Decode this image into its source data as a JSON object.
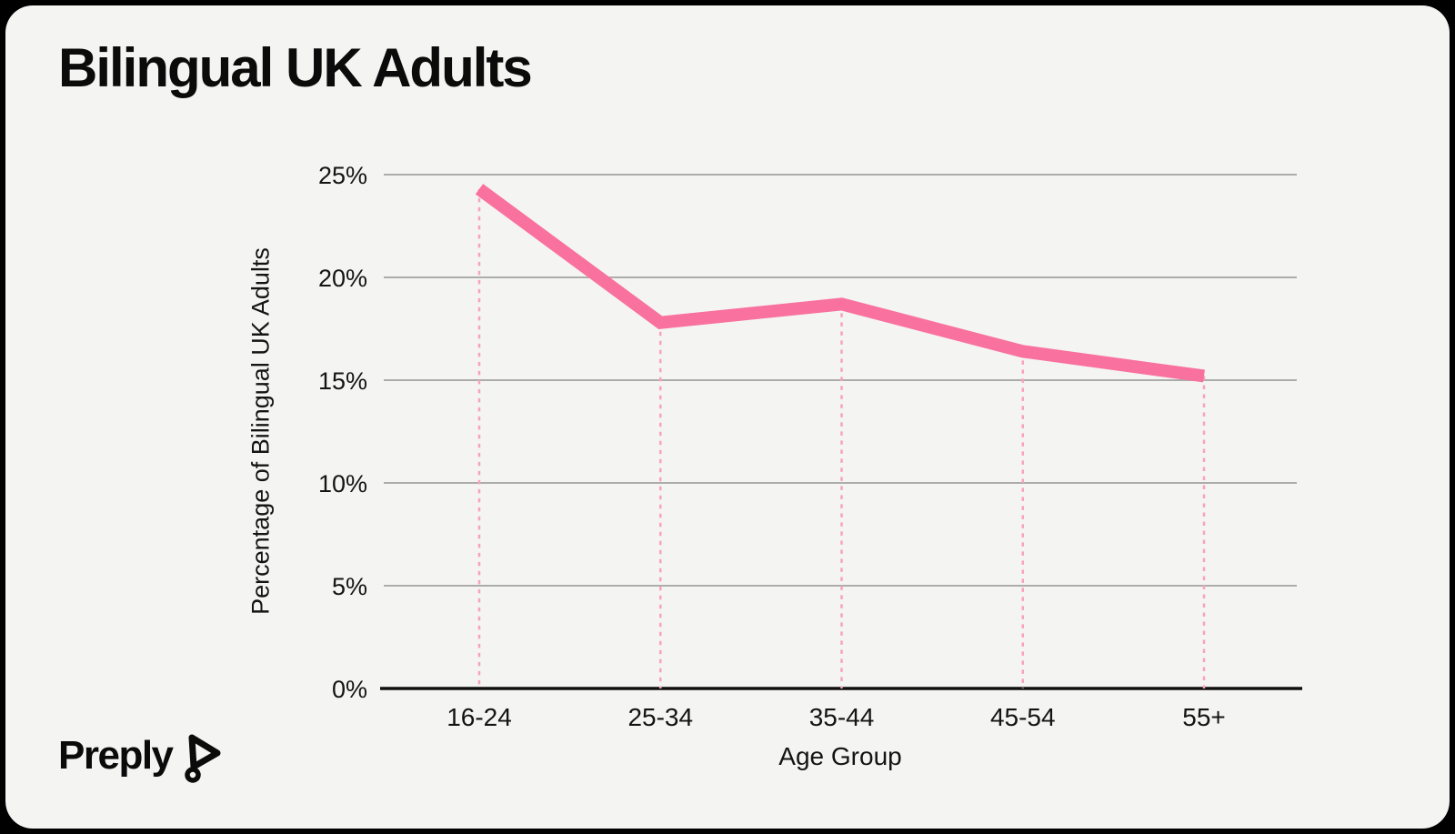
{
  "title": "Bilingual UK Adults",
  "footer": {
    "brand": "Preply",
    "logo_icon": "preply-speech-bubble-icon"
  },
  "chart_data": {
    "type": "line",
    "title": "Bilingual UK Adults",
    "xlabel": "Age Group",
    "ylabel": "Percentage of Bilingual UK Adults",
    "categories": [
      "16-24",
      "25-34",
      "35-44",
      "45-54",
      "55+"
    ],
    "values": [
      24.3,
      17.8,
      18.7,
      16.4,
      15.2
    ],
    "ylim": [
      0,
      25
    ],
    "yticks": [
      0,
      5,
      10,
      15,
      20,
      25
    ],
    "ytick_labels": [
      "0%",
      "5%",
      "10%",
      "15%",
      "20%",
      "25%"
    ],
    "grid": true,
    "legend": false,
    "colors": {
      "line": "#F9719F",
      "drop_line": "#F8A2C0",
      "grid": "#ACACAC",
      "axis": "#101010",
      "text": "#141414",
      "background": "#F4F4F2",
      "frame": "#000000",
      "title": "#0b0b0b"
    }
  }
}
